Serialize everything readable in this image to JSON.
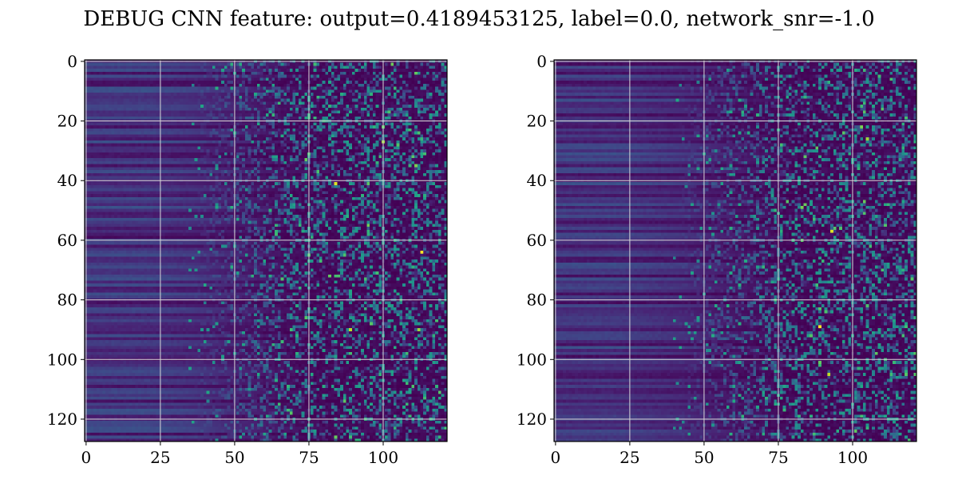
{
  "figure": {
    "title": "DEBUG CNN feature: output=0.4189453125, label=0.0, network_snr=-1.0"
  },
  "chart_data": [
    {
      "type": "heatmap",
      "panel": "left",
      "colormap": "viridis",
      "rows": 128,
      "cols": 122,
      "xlim": [
        -0.5,
        121.5
      ],
      "ylim": [
        127.5,
        -0.5
      ],
      "y_axis_inverted": true,
      "grid": true,
      "grid_color": "#d9d9d9",
      "x_ticks": [
        0,
        25,
        50,
        75,
        100
      ],
      "x_tick_labels": [
        "0",
        "25",
        "50",
        "75",
        "100"
      ],
      "y_ticks": [
        0,
        20,
        40,
        60,
        80,
        100,
        120
      ],
      "y_tick_labels": [
        "0",
        "20",
        "40",
        "60",
        "80",
        "100",
        "120"
      ],
      "value_range": [
        0,
        1
      ],
      "pattern": "low uniform values (dark purple, horizontal banding) for columns 0-50, increasingly noisy speckled values for columns 50-121 with occasional bright yellow peaks",
      "bright_points": [
        {
          "x": 113,
          "y": 64,
          "value": 1.0
        },
        {
          "x": 84,
          "y": 41,
          "value": 0.95
        },
        {
          "x": 89,
          "y": 90,
          "value": 0.9
        },
        {
          "x": 112,
          "y": 90,
          "value": 0.85
        },
        {
          "x": 100,
          "y": 27,
          "value": 0.85
        },
        {
          "x": 111,
          "y": 35,
          "value": 0.8
        }
      ],
      "seed": 7
    },
    {
      "type": "heatmap",
      "panel": "right",
      "colormap": "viridis",
      "rows": 128,
      "cols": 122,
      "xlim": [
        -0.5,
        121.5
      ],
      "ylim": [
        127.5,
        -0.5
      ],
      "y_axis_inverted": true,
      "grid": true,
      "grid_color": "#d9d9d9",
      "x_ticks": [
        0,
        25,
        50,
        75,
        100
      ],
      "x_tick_labels": [
        "0",
        "25",
        "50",
        "75",
        "100"
      ],
      "y_ticks": [
        0,
        20,
        40,
        60,
        80,
        100,
        120
      ],
      "y_tick_labels": [
        "0",
        "20",
        "40",
        "60",
        "80",
        "100",
        "120"
      ],
      "value_range": [
        0,
        1
      ],
      "pattern": "low uniform values (dark purple, horizontal banding) for columns 0-55, increasingly noisy speckled values for columns 55-121 with occasional bright yellow peaks",
      "bright_points": [
        {
          "x": 89,
          "y": 89,
          "value": 1.0
        },
        {
          "x": 93,
          "y": 57,
          "value": 0.95
        },
        {
          "x": 92,
          "y": 105,
          "value": 0.9
        },
        {
          "x": 105,
          "y": 26,
          "value": 0.85
        },
        {
          "x": 103,
          "y": 22,
          "value": 0.8
        },
        {
          "x": 83,
          "y": 49,
          "value": 0.8
        }
      ],
      "seed": 19
    }
  ]
}
